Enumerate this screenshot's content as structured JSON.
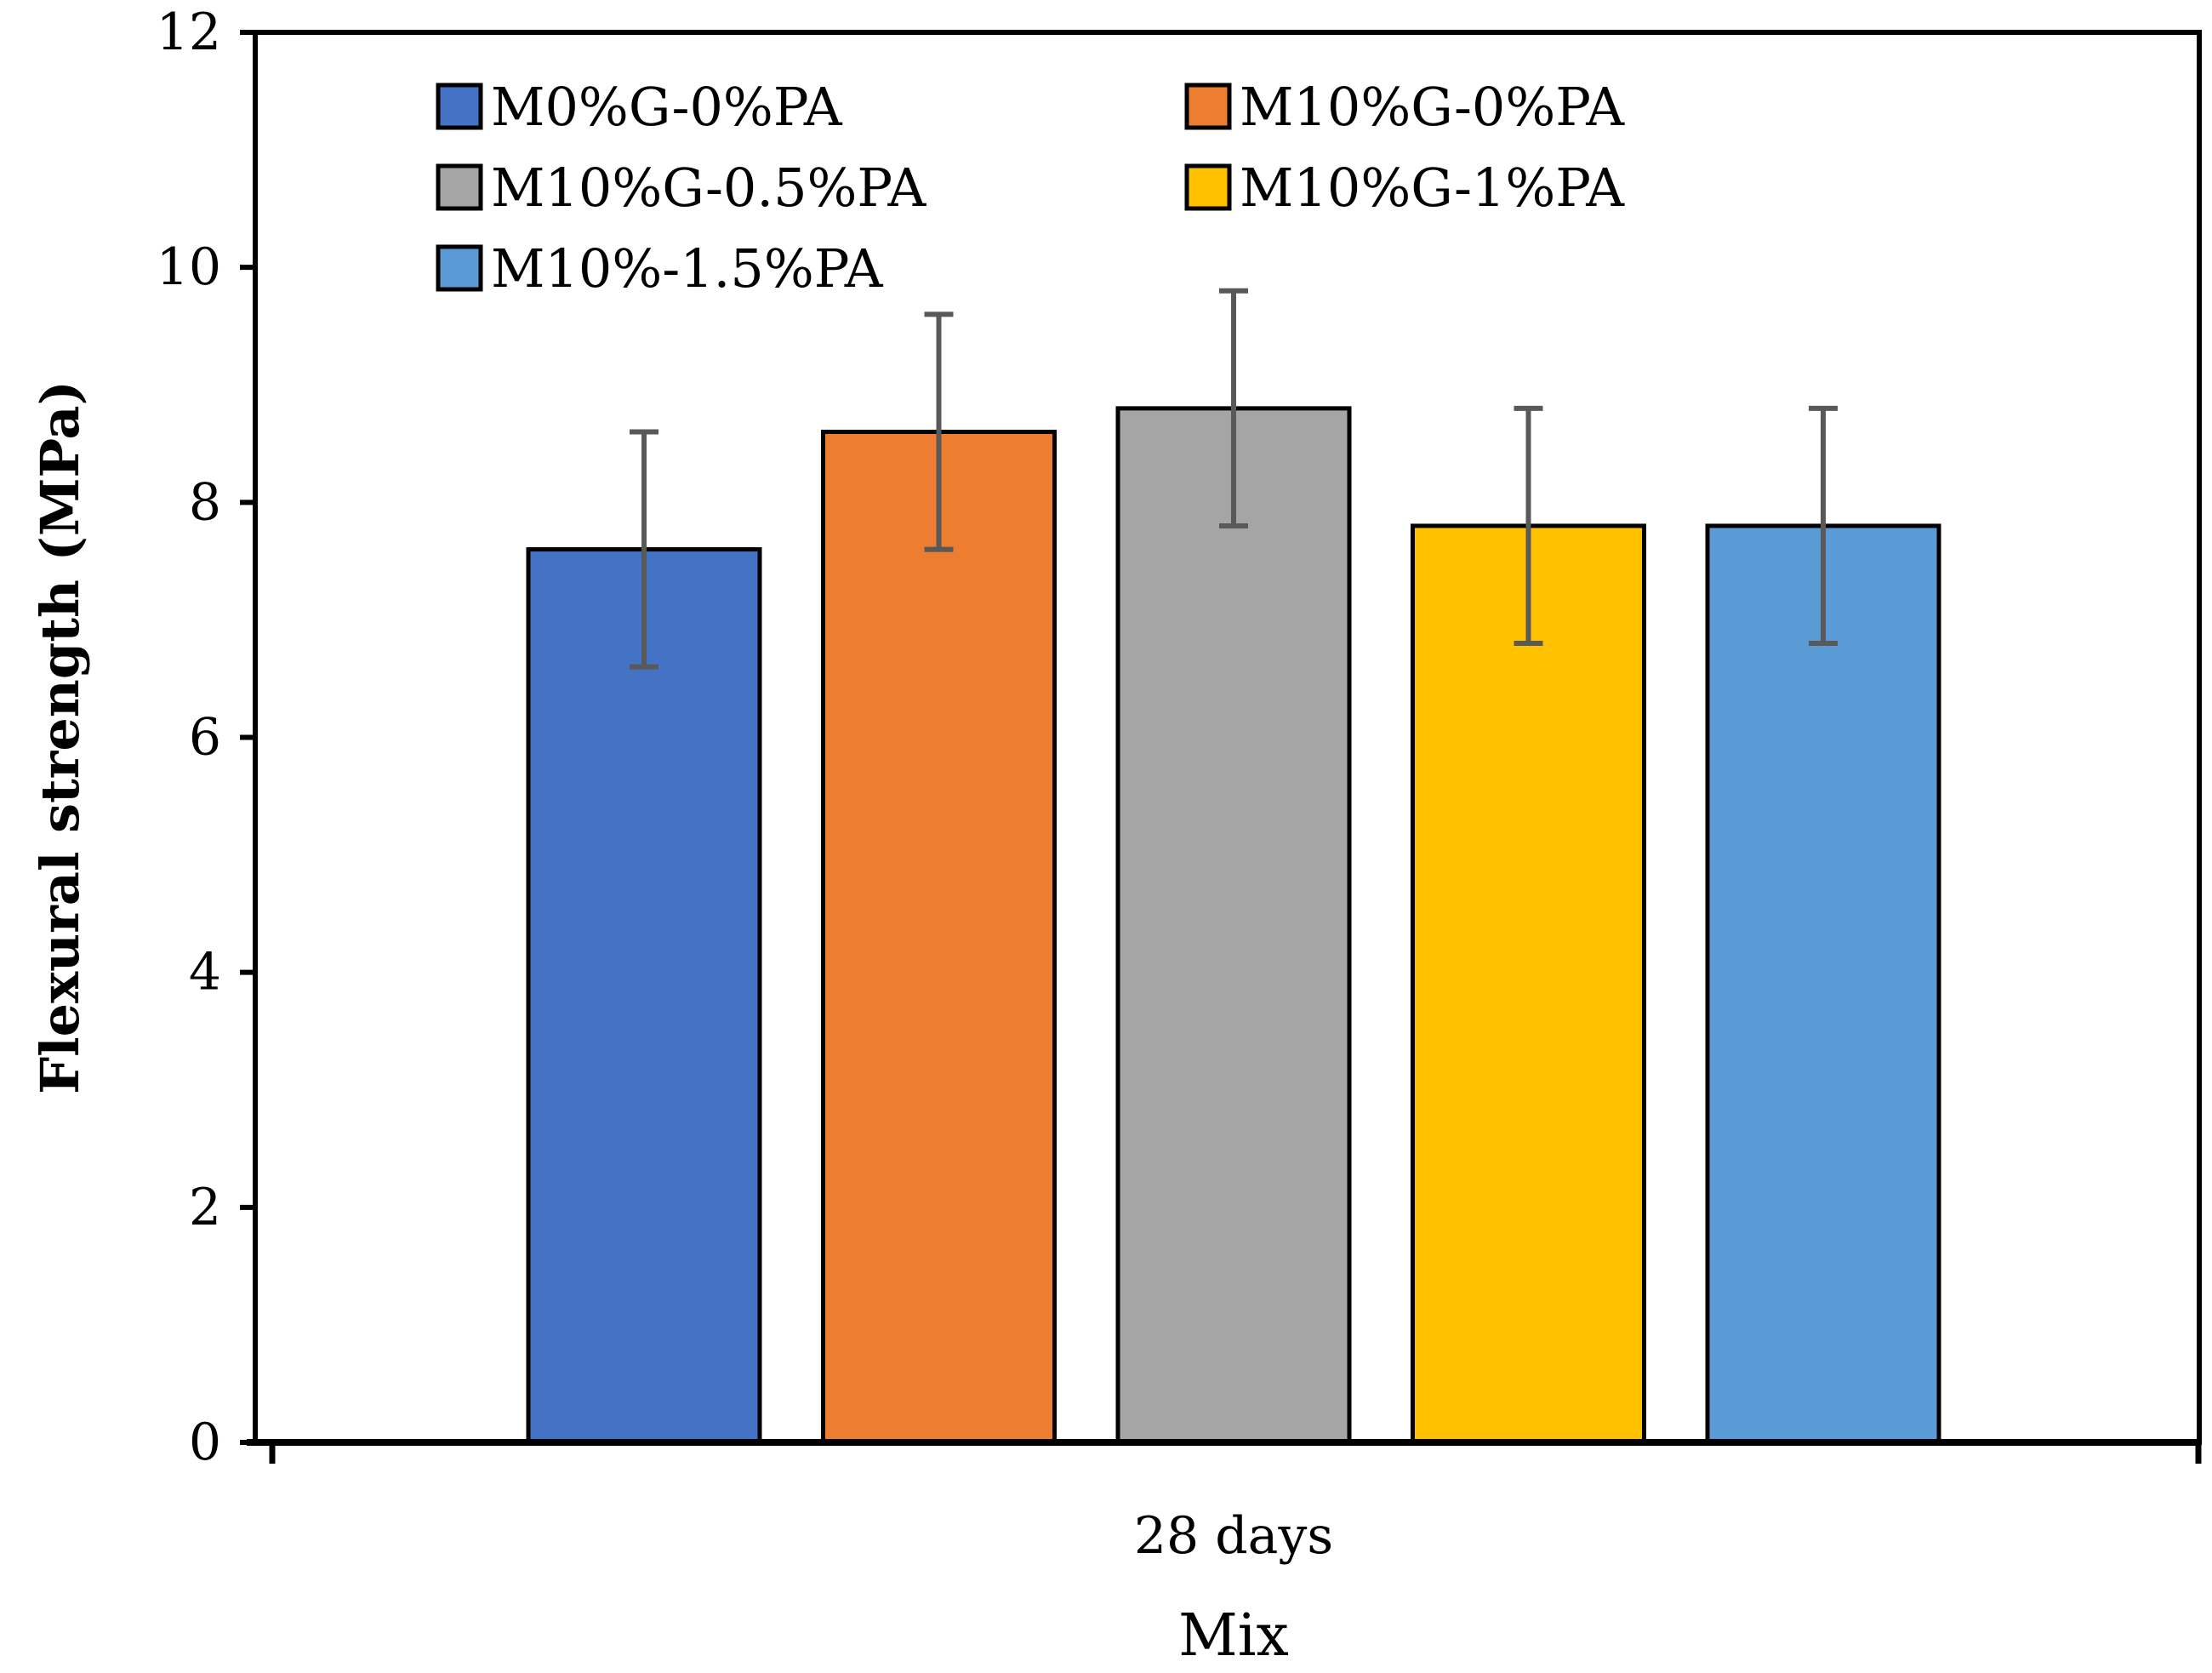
{
  "chart_data": {
    "type": "bar",
    "title": "",
    "xlabel": "Mix",
    "ylabel": "Flexural strength (MPa)",
    "ylim": [
      0,
      12
    ],
    "yticks": [
      0,
      2,
      4,
      6,
      8,
      10,
      12
    ],
    "grid": false,
    "legend_position": "top-left",
    "categories": [
      "28 days"
    ],
    "series": [
      {
        "name": "M0%G-0%PA",
        "values": [
          7.6
        ],
        "error": [
          1.0
        ],
        "color": "#4472C4"
      },
      {
        "name": "M10%G-0%PA",
        "values": [
          8.6
        ],
        "error": [
          1.0
        ],
        "color": "#ED7D31"
      },
      {
        "name": "M10%G-0.5%PA",
        "values": [
          8.8
        ],
        "error": [
          1.0
        ],
        "color": "#A5A5A5"
      },
      {
        "name": "M10%G-1%PA",
        "values": [
          7.8
        ],
        "error": [
          1.0
        ],
        "color": "#FFC000"
      },
      {
        "name": "M10%-1.5%PA",
        "values": [
          7.8
        ],
        "error": [
          1.0
        ],
        "color": "#5B9BD5"
      }
    ],
    "error_bar_color": "#595959"
  }
}
